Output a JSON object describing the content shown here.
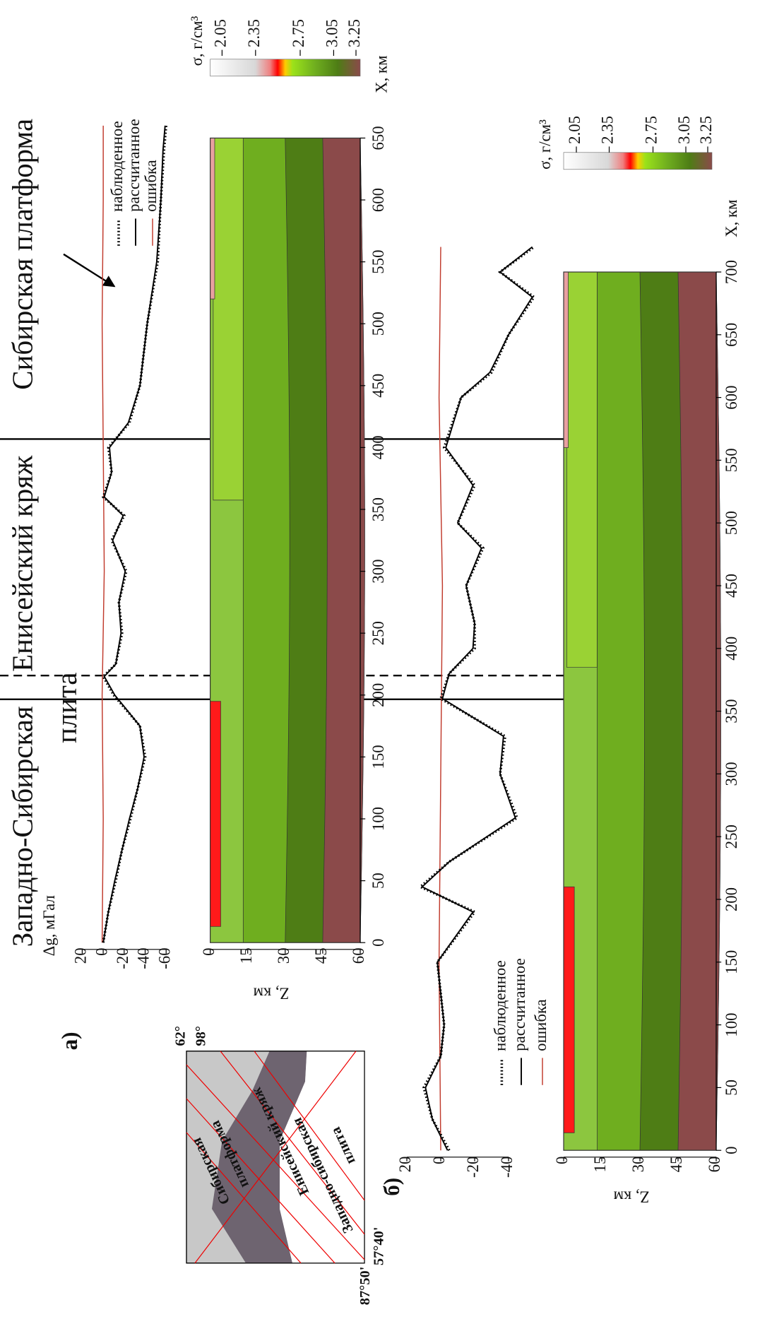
{
  "region_titles": {
    "west": [
      "Западно-Сибирская",
      "плита"
    ],
    "yenisei": "Енисейский кряж",
    "siberia": "Сибирская платформа"
  },
  "map": {
    "corners": [
      "62°",
      "98°",
      "87°50'",
      "57°40'"
    ],
    "labels": [
      "Сибирская",
      "платформа",
      "Енисейский кряж",
      "Западно-сибирская",
      "плита"
    ]
  },
  "panels": [
    {
      "label": "а)",
      "x_label": "X, км",
      "g_label": "Δg, мГал",
      "z_label": "Z, км",
      "xlim": [
        0,
        650
      ],
      "xticks": [
        0,
        50,
        100,
        150,
        200,
        250,
        300,
        350,
        400,
        450,
        500,
        550,
        600,
        650
      ],
      "glim": [
        -60,
        20
      ],
      "gticks": [
        20,
        0,
        -20,
        -40,
        -60
      ],
      "zlim": [
        0,
        60
      ],
      "zticks": [
        0,
        15,
        30,
        45,
        60
      ],
      "density_label": "σ, г/см³",
      "dlim": [
        2.05,
        3.25
      ],
      "density_ticks": [
        2.05,
        2.35,
        2.75,
        3.05,
        3.25
      ],
      "legend": [
        "наблюденное",
        "рассчитанное",
        "ошибка"
      ],
      "observed": {
        "x": [
          0,
          25,
          50,
          75,
          100,
          125,
          150,
          175,
          200,
          215,
          225,
          250,
          275,
          300,
          325,
          345,
          360,
          380,
          400,
          420,
          450,
          500,
          550,
          600,
          640,
          660
        ],
        "values": [
          0,
          -5,
          -12,
          -18,
          -26,
          -33,
          -40,
          -35,
          -10,
          0,
          -12,
          -18,
          -15,
          -22,
          -8,
          -20,
          0,
          -8,
          -5,
          -25,
          -35,
          -42,
          -52,
          -55,
          -58,
          -60
        ]
      },
      "calculated": {
        "x": [
          0,
          25,
          50,
          75,
          100,
          125,
          150,
          175,
          200,
          215,
          225,
          250,
          275,
          300,
          325,
          345,
          360,
          380,
          400,
          420,
          450,
          500,
          550,
          600,
          640,
          660
        ],
        "values": [
          0,
          -5,
          -11,
          -18,
          -25,
          -33,
          -39,
          -35,
          -11,
          -1,
          -12,
          -17,
          -15,
          -21,
          -9,
          -19,
          -1,
          -8,
          -6,
          -24,
          -35,
          -42,
          -51,
          -55,
          -57,
          -59
        ]
      },
      "error": {
        "x": [
          0,
          100,
          200,
          300,
          400,
          500,
          600,
          660
        ],
        "values": [
          1,
          0,
          1,
          -1,
          0,
          1,
          0,
          0
        ]
      }
    },
    {
      "label": "б)",
      "x_label": "X, км",
      "z_label": "Z, км",
      "xlim": [
        0,
        700
      ],
      "xticks": [
        0,
        50,
        100,
        150,
        200,
        250,
        300,
        350,
        400,
        450,
        500,
        550,
        600,
        650,
        700
      ],
      "glim": [
        -60,
        20
      ],
      "gticks": [
        20,
        0,
        -20,
        -40
      ],
      "zlim": [
        0,
        60
      ],
      "zticks": [
        0,
        15,
        30,
        45,
        60
      ],
      "density_label": "σ, г/см³",
      "dlim": [
        2.05,
        3.25
      ],
      "density_ticks": [
        2.05,
        2.35,
        2.75,
        3.05,
        3.25
      ],
      "legend": [
        "наблюденное",
        "рассчитанное",
        "ошибка"
      ],
      "observed": {
        "x": [
          0,
          25,
          50,
          75,
          100,
          150,
          190,
          210,
          230,
          265,
          300,
          330,
          360,
          380,
          400,
          420,
          450,
          480,
          500,
          530,
          560,
          600,
          620,
          650,
          680,
          700,
          720
        ],
        "values": [
          -5,
          5,
          10,
          0,
          -2,
          2,
          -20,
          12,
          -5,
          -45,
          -35,
          -38,
          0,
          -5,
          -20,
          -20,
          -15,
          -25,
          -10,
          -20,
          -2,
          -12,
          -30,
          -40,
          -55,
          -35,
          -55
        ]
      },
      "calculated": {
        "x": [
          0,
          25,
          50,
          75,
          100,
          150,
          190,
          210,
          230,
          265,
          300,
          330,
          360,
          380,
          400,
          420,
          450,
          480,
          500,
          530,
          560,
          600,
          620,
          650,
          680,
          700,
          720
        ],
        "values": [
          -4,
          5,
          9,
          0,
          -2,
          2,
          -19,
          11,
          -5,
          -44,
          -35,
          -37,
          -1,
          -5,
          -19,
          -20,
          -15,
          -24,
          -10,
          -19,
          -3,
          -12,
          -29,
          -40,
          -54,
          -35,
          -54
        ]
      },
      "error": {
        "x": [
          0,
          150,
          300,
          450,
          600,
          720
        ],
        "values": [
          0,
          1,
          0,
          -1,
          1,
          0
        ]
      }
    }
  ]
}
